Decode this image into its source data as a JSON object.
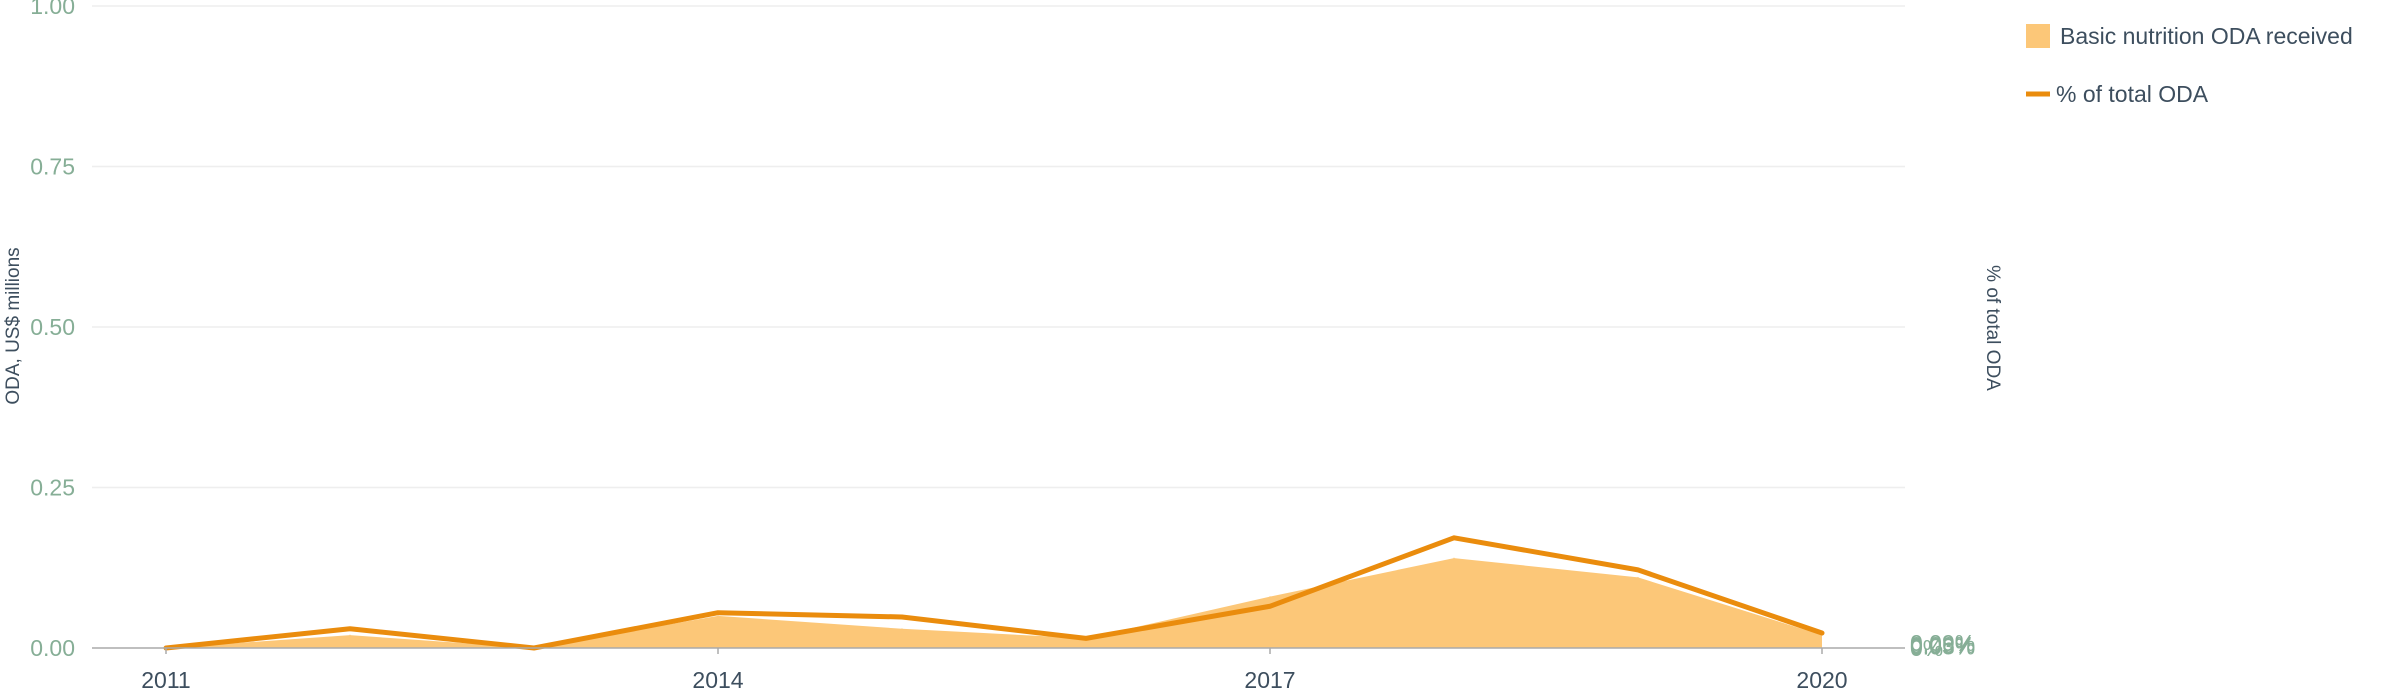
{
  "chart_data": {
    "type": "area",
    "x": [
      2011,
      2012,
      2013,
      2014,
      2015,
      2016,
      2017,
      2018,
      2019,
      2020
    ],
    "x_ticks": [
      "2011",
      "2014",
      "2017",
      "2020"
    ],
    "xlim": [
      2011,
      2020
    ],
    "left_axis": {
      "title": "ODA, US$ millions",
      "ylim": [
        0,
        1
      ],
      "ticks": [
        "0.00",
        "0.25",
        "0.50",
        "0.75",
        "1.00"
      ]
    },
    "right_axis": {
      "title": "% of total ODA",
      "ylim": [
        0,
        0.12
      ],
      "ticks": [
        "0%",
        "0.03%",
        "0.06%",
        "0.09%"
      ]
    },
    "series": [
      {
        "name": "Basic nutrition ODA received",
        "type": "area",
        "axis": "left",
        "color": "#fcc778",
        "values": [
          0.0,
          0.02,
          0.0,
          0.05,
          0.03,
          0.015,
          0.08,
          0.14,
          0.11,
          0.02
        ]
      },
      {
        "name": "% of total ODA",
        "type": "line",
        "axis": "right",
        "color": "#ea8c0d",
        "values": [
          0.0,
          0.0036,
          0.0,
          0.0066,
          0.0058,
          0.0018,
          0.0078,
          0.0206,
          0.0146,
          0.0028
        ]
      }
    ],
    "legend": {
      "position": "top-right",
      "items": [
        {
          "label": "Basic nutrition ODA received",
          "symbol": "square",
          "color": "#fcc778"
        },
        {
          "label": "% of total ODA",
          "symbol": "line",
          "color": "#ea8c0d"
        }
      ]
    },
    "grid": true,
    "colors": {
      "grid": "#eeeeee",
      "baseline": "#aaaaaa",
      "left_tick": "#86ae96",
      "right_tick": "#86ae96",
      "text": "#3d4e5e"
    }
  }
}
